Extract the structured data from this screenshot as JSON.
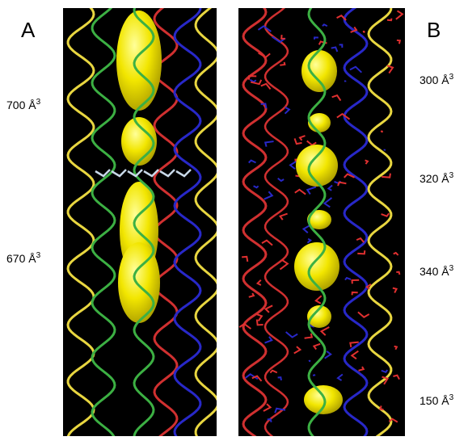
{
  "panels": [
    {
      "label": "A",
      "volumes": [
        {
          "text": "700 Å",
          "superscript": "3"
        },
        {
          "text": "670 Å",
          "superscript": "3"
        }
      ]
    },
    {
      "label": "B",
      "volumes": [
        {
          "text": "300 Å",
          "superscript": "3"
        },
        {
          "text": "320 Å",
          "superscript": "3"
        },
        {
          "text": "340 Å",
          "superscript": "3"
        },
        {
          "text": "150 Å",
          "superscript": "3"
        }
      ]
    }
  ]
}
